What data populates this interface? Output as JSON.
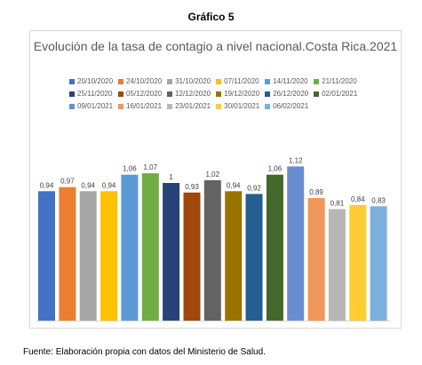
{
  "heading": "Gráfico 5",
  "source": "Fuente: Elaboración propia con datos del Ministerio de Salud.",
  "chart_data": {
    "type": "bar",
    "title": "Evolución de la tasa de contagio a nivel nacional.Costa Rica.2021",
    "xlabel": "",
    "ylabel": "",
    "ylim": [
      0,
      1.2
    ],
    "grid": false,
    "legend_position": "top",
    "series": [
      {
        "name": "20/10/2020",
        "value": 0.94,
        "label": "0,94",
        "color": "#4472c4"
      },
      {
        "name": "24/10/2020",
        "value": 0.97,
        "label": "0,97",
        "color": "#ed7d31"
      },
      {
        "name": "31/10/2020",
        "value": 0.94,
        "label": "0,94",
        "color": "#a5a5a5"
      },
      {
        "name": "07/11/2020",
        "value": 0.94,
        "label": "0,94",
        "color": "#ffc000"
      },
      {
        "name": "14/11/2020",
        "value": 1.06,
        "label": "1,06",
        "color": "#5b9bd5"
      },
      {
        "name": "21/11/2020",
        "value": 1.07,
        "label": "1,07",
        "color": "#70ad47"
      },
      {
        "name": "25/11/2020",
        "value": 1.0,
        "label": "1",
        "color": "#264478"
      },
      {
        "name": "05/12/2020",
        "value": 0.93,
        "label": "0,93",
        "color": "#9e480e"
      },
      {
        "name": "12/12/2020",
        "value": 1.02,
        "label": "1,02",
        "color": "#636363"
      },
      {
        "name": "19/12/2020",
        "value": 0.94,
        "label": "0,94",
        "color": "#997300"
      },
      {
        "name": "26/12/2020",
        "value": 0.92,
        "label": "0,92",
        "color": "#255e91"
      },
      {
        "name": "02/01/2021",
        "value": 1.06,
        "label": "1,06",
        "color": "#43682b"
      },
      {
        "name": "09/01/2021",
        "value": 1.12,
        "label": "1,12",
        "color": "#698ed0"
      },
      {
        "name": "16/01/2021",
        "value": 0.89,
        "label": "0,89",
        "color": "#f1975a"
      },
      {
        "name": "23/01/2021",
        "value": 0.81,
        "label": "0,81",
        "color": "#b7b7b7"
      },
      {
        "name": "30/01/2021",
        "value": 0.84,
        "label": "0,84",
        "color": "#ffcd33"
      },
      {
        "name": "06/02/2021",
        "value": 0.83,
        "label": "0,83",
        "color": "#7cafdd"
      }
    ]
  }
}
